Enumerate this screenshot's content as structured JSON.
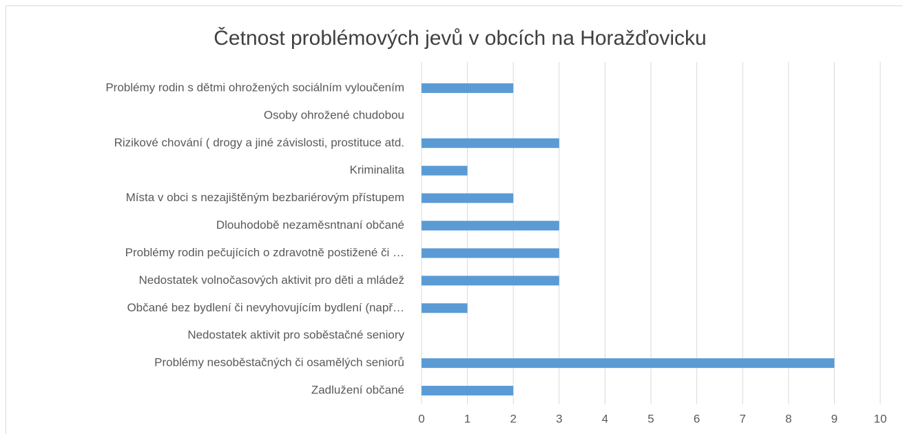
{
  "chart_data": {
    "type": "bar",
    "orientation": "horizontal",
    "title": "Četnost problémových jevů v obcích na Horažďovicku",
    "categories": [
      "Problémy rodin s dětmi ohrožených sociálním vyloučením",
      "Osoby ohrožené chudobou",
      "Rizikové chování ( drogy a jiné závislosti, prostituce atd.",
      "Kriminalita",
      "Místa v obci s nezajištěným bezbariérovým přístupem",
      "Dlouhodobě nezaměsntnaní občané",
      "Problémy rodin pečujících o zdravotně postižené či …",
      "Nedostatek volnočasových aktivit pro děti a mládež",
      "Občané bez bydlení či nevyhovujícím bydlení (např…",
      "Nedostatek aktivit pro soběstačné seniory",
      "Problémy nesoběstačných či osamělých seniorů",
      "Zadlužení občané"
    ],
    "values": [
      2,
      0,
      3,
      1,
      2,
      3,
      3,
      3,
      1,
      0,
      9,
      2
    ],
    "color": "#5b9bd5",
    "xlim": [
      0,
      10
    ],
    "xticks": [
      0,
      1,
      2,
      3,
      4,
      5,
      6,
      7,
      8,
      9,
      10
    ],
    "grid": true
  }
}
